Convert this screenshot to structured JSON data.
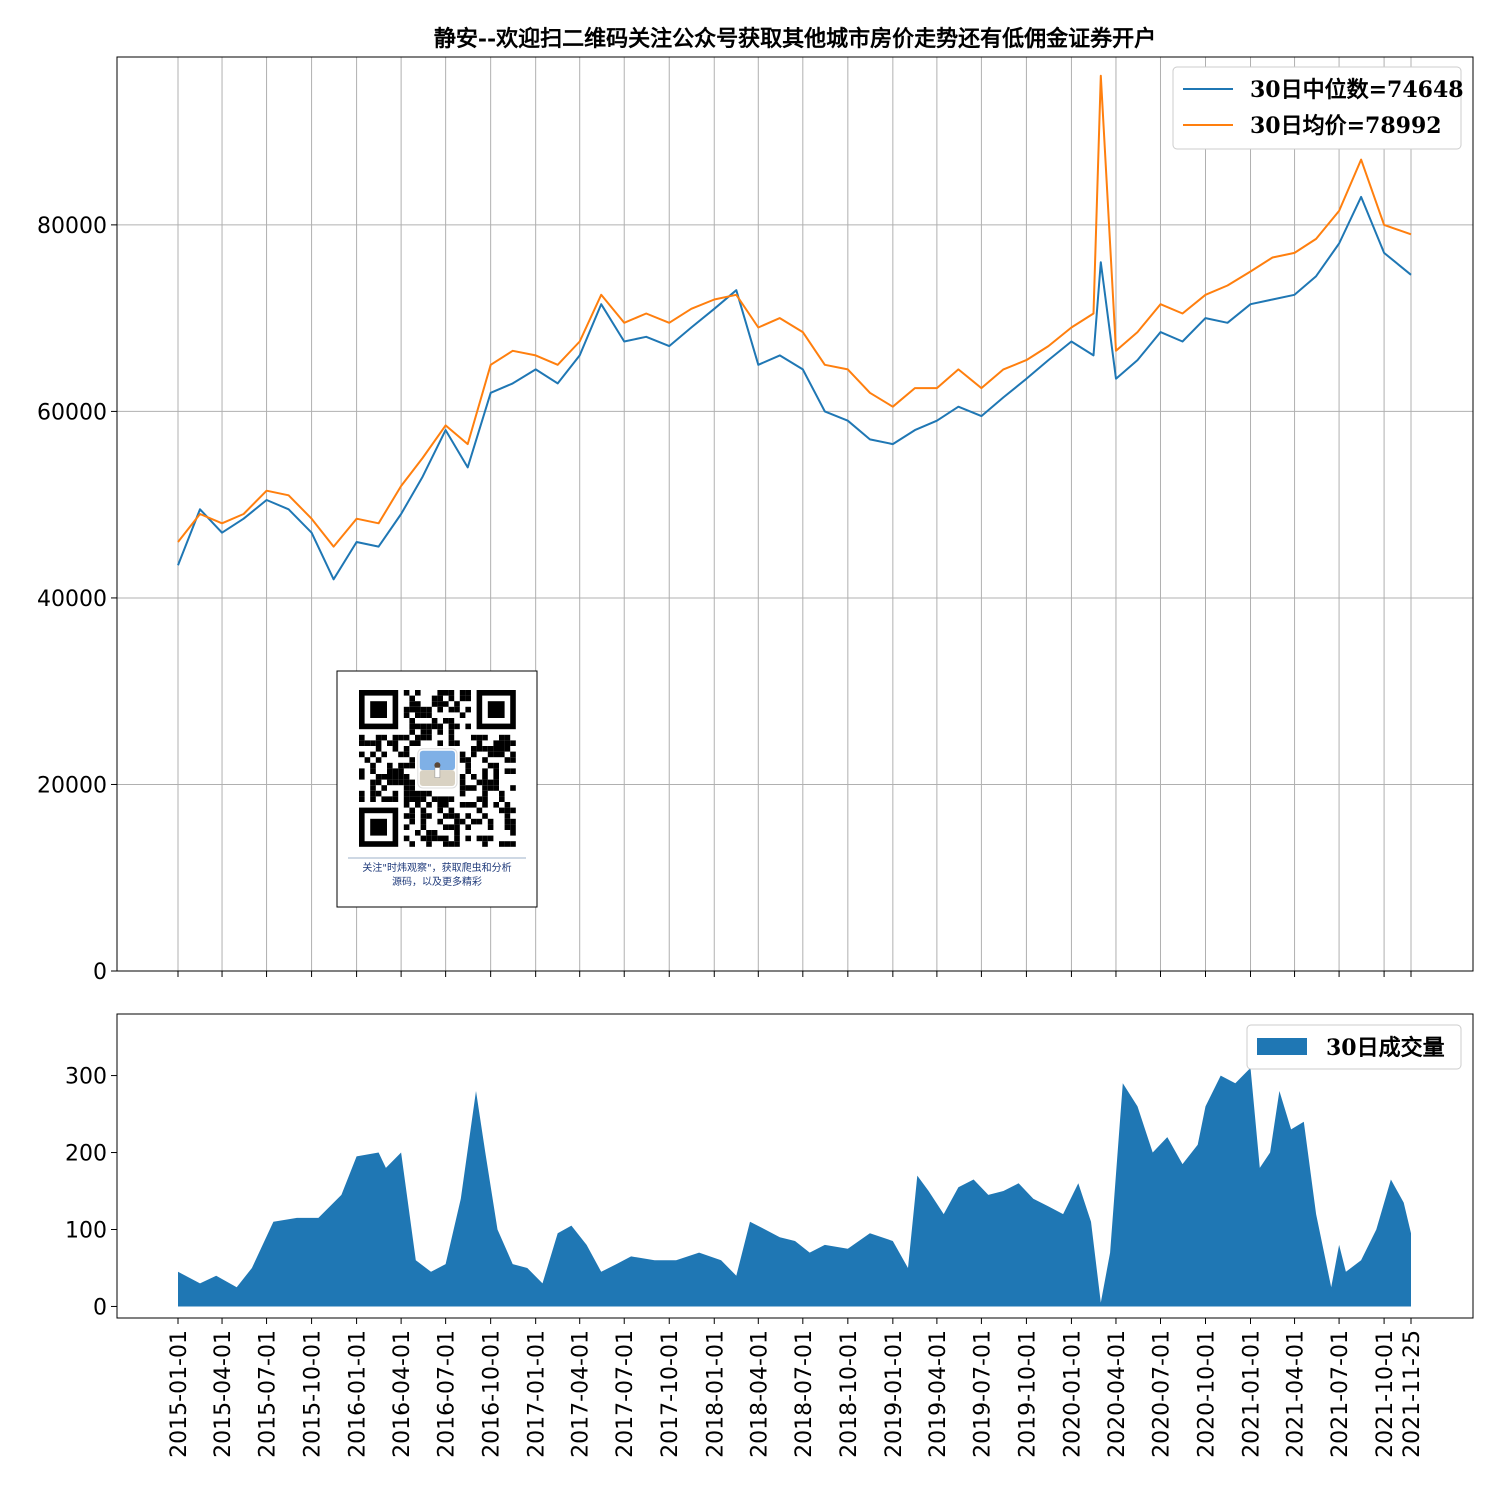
{
  "chart_data": [
    {
      "type": "line",
      "title": "静安--欢迎扫二维码关注公众号获取其他城市房价走势还有低佣金证券开户",
      "xlabel": "",
      "ylabel": "",
      "ylim": [
        0,
        98000
      ],
      "yticks": [
        0,
        20000,
        40000,
        60000,
        80000
      ],
      "grid": true,
      "legend_position": "top-right",
      "x": [
        "2015-01-01",
        "2015-02-15",
        "2015-04-01",
        "2015-05-15",
        "2015-07-01",
        "2015-08-15",
        "2015-10-01",
        "2015-11-15",
        "2016-01-01",
        "2016-02-15",
        "2016-04-01",
        "2016-05-15",
        "2016-07-01",
        "2016-08-15",
        "2016-10-01",
        "2016-11-15",
        "2017-01-01",
        "2017-02-15",
        "2017-04-01",
        "2017-05-15",
        "2017-07-01",
        "2017-08-15",
        "2017-10-01",
        "2017-11-15",
        "2018-01-01",
        "2018-02-15",
        "2018-04-01",
        "2018-05-15",
        "2018-07-01",
        "2018-08-15",
        "2018-10-01",
        "2018-11-15",
        "2019-01-01",
        "2019-02-15",
        "2019-04-01",
        "2019-05-15",
        "2019-07-01",
        "2019-08-15",
        "2019-10-01",
        "2019-11-15",
        "2020-01-01",
        "2020-02-15",
        "2020-03-01",
        "2020-04-01",
        "2020-05-15",
        "2020-07-01",
        "2020-08-15",
        "2020-10-01",
        "2020-11-15",
        "2021-01-01",
        "2021-02-15",
        "2021-04-01",
        "2021-05-15",
        "2021-07-01",
        "2021-08-15",
        "2021-10-01",
        "2021-11-25"
      ],
      "series": [
        {
          "name": "30日中位数=74648",
          "color": "#1f77b4",
          "values": [
            43500,
            49500,
            47000,
            48500,
            50500,
            49500,
            47000,
            42000,
            46000,
            45500,
            49000,
            53000,
            58000,
            54000,
            62000,
            63000,
            64500,
            63000,
            66000,
            71500,
            67500,
            68000,
            67000,
            69000,
            71000,
            73000,
            65000,
            66000,
            64500,
            60000,
            59000,
            57000,
            56500,
            58000,
            59000,
            60500,
            59500,
            61500,
            63500,
            65500,
            67500,
            66000,
            76000,
            63500,
            65500,
            68500,
            67500,
            70000,
            69500,
            71500,
            72000,
            72500,
            74500,
            78000,
            83000,
            77000,
            74648
          ]
        },
        {
          "name": "30日均价=78992",
          "color": "#ff7f0e",
          "values": [
            46000,
            49000,
            48000,
            49000,
            51500,
            51000,
            48500,
            45500,
            48500,
            48000,
            52000,
            55000,
            58500,
            56500,
            65000,
            66500,
            66000,
            65000,
            67500,
            72500,
            69500,
            70500,
            69500,
            71000,
            72000,
            72500,
            69000,
            70000,
            68500,
            65000,
            64500,
            62000,
            60500,
            62500,
            62500,
            64500,
            62500,
            64500,
            65500,
            67000,
            69000,
            70500,
            96000,
            66500,
            68500,
            71500,
            70500,
            72500,
            73500,
            75000,
            76500,
            77000,
            78500,
            81500,
            87000,
            80000,
            78992
          ]
        }
      ]
    },
    {
      "type": "area",
      "xlabel": "",
      "ylabel": "",
      "ylim": [
        -15,
        380
      ],
      "yticks": [
        0,
        100,
        200,
        300
      ],
      "grid": false,
      "legend_position": "top-right",
      "xticks": [
        "2015-01-01",
        "2015-04-01",
        "2015-07-01",
        "2015-10-01",
        "2016-01-01",
        "2016-04-01",
        "2016-07-01",
        "2016-10-01",
        "2017-01-01",
        "2017-04-01",
        "2017-07-01",
        "2017-10-01",
        "2018-01-01",
        "2018-04-01",
        "2018-07-01",
        "2018-10-01",
        "2019-01-01",
        "2019-04-01",
        "2019-07-01",
        "2019-10-01",
        "2020-01-01",
        "2020-04-01",
        "2020-07-01",
        "2020-10-01",
        "2021-01-01",
        "2021-04-01",
        "2021-07-01",
        "2021-10-01",
        "2021-11-25"
      ],
      "x": [
        "2015-01-01",
        "2015-02-15",
        "2015-03-20",
        "2015-05-01",
        "2015-06-01",
        "2015-07-15",
        "2015-09-01",
        "2015-10-15",
        "2015-12-01",
        "2016-01-01",
        "2016-02-15",
        "2016-03-01",
        "2016-04-01",
        "2016-05-01",
        "2016-06-01",
        "2016-07-01",
        "2016-08-01",
        "2016-09-01",
        "2016-09-20",
        "2016-10-15",
        "2016-11-15",
        "2016-12-15",
        "2017-01-15",
        "2017-02-15",
        "2017-03-15",
        "2017-04-15",
        "2017-05-15",
        "2017-06-15",
        "2017-07-15",
        "2017-09-01",
        "2017-10-15",
        "2017-12-01",
        "2018-01-15",
        "2018-02-15",
        "2018-03-15",
        "2018-04-15",
        "2018-05-15",
        "2018-06-15",
        "2018-07-15",
        "2018-08-15",
        "2018-10-01",
        "2018-11-15",
        "2019-01-01",
        "2019-02-01",
        "2019-02-20",
        "2019-03-15",
        "2019-04-15",
        "2019-05-15",
        "2019-06-15",
        "2019-07-15",
        "2019-08-15",
        "2019-09-15",
        "2019-10-15",
        "2019-11-15",
        "2019-12-15",
        "2020-01-15",
        "2020-02-10",
        "2020-03-01",
        "2020-03-20",
        "2020-04-15",
        "2020-05-15",
        "2020-06-15",
        "2020-07-15",
        "2020-08-15",
        "2020-09-15",
        "2020-10-01",
        "2020-11-01",
        "2020-12-01",
        "2021-01-01",
        "2021-01-20",
        "2021-02-10",
        "2021-03-01",
        "2021-03-25",
        "2021-04-20",
        "2021-05-15",
        "2021-06-15",
        "2021-07-01",
        "2021-07-15",
        "2021-08-15",
        "2021-09-15",
        "2021-10-15",
        "2021-11-10",
        "2021-11-25"
      ],
      "series": [
        {
          "name": "30日成交量",
          "color": "#1f77b4",
          "values": [
            45,
            30,
            40,
            25,
            50,
            110,
            115,
            115,
            145,
            195,
            200,
            180,
            200,
            60,
            45,
            55,
            140,
            280,
            200,
            100,
            55,
            50,
            30,
            95,
            105,
            80,
            45,
            55,
            65,
            60,
            60,
            70,
            60,
            40,
            110,
            100,
            90,
            85,
            70,
            80,
            75,
            95,
            85,
            50,
            170,
            150,
            120,
            155,
            165,
            145,
            150,
            160,
            140,
            130,
            120,
            160,
            110,
            5,
            70,
            290,
            260,
            200,
            220,
            185,
            210,
            260,
            300,
            290,
            310,
            180,
            200,
            280,
            230,
            240,
            120,
            25,
            80,
            45,
            60,
            100,
            165,
            135,
            95
          ]
        }
      ]
    }
  ],
  "qr_caption": {
    "line1": "关注\"时炜观察\"，获取爬虫和分析",
    "line2": "源码，以及更多精彩"
  }
}
